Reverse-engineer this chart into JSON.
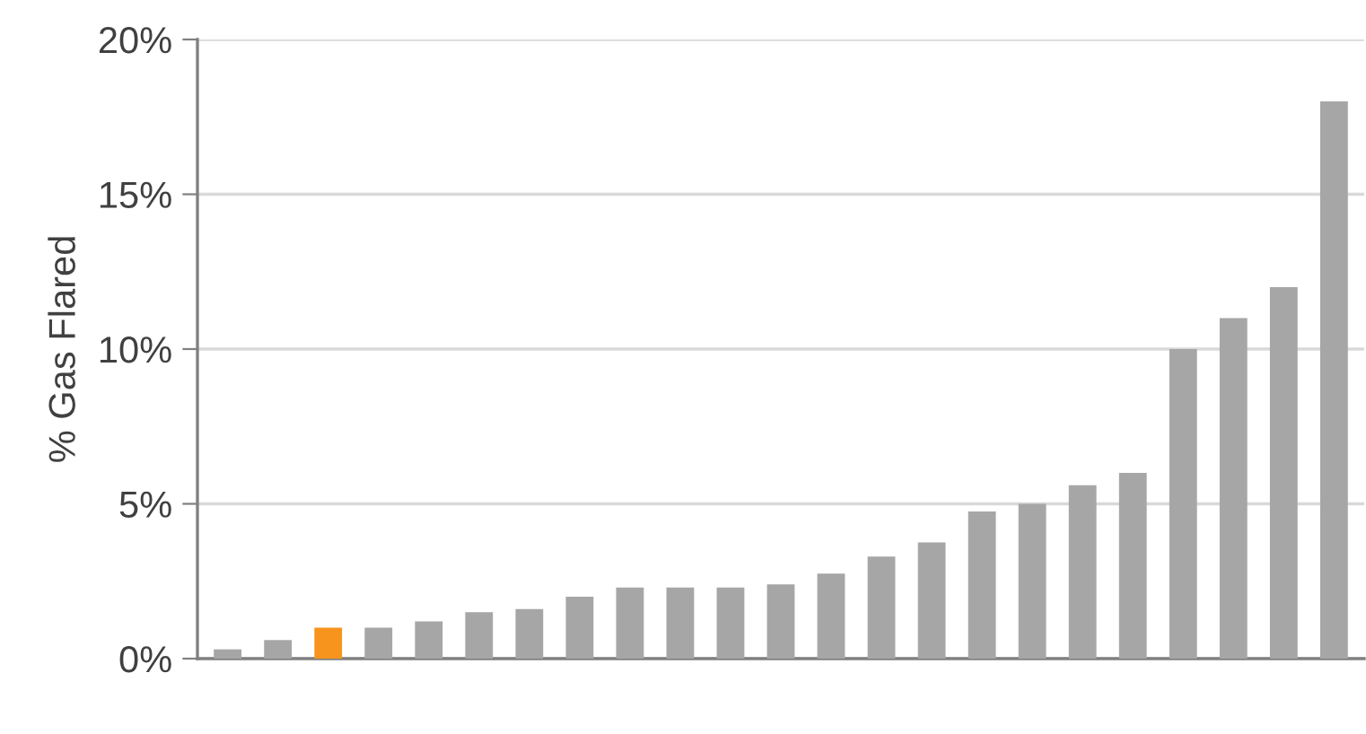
{
  "chart_data": {
    "type": "bar",
    "ylabel": "% Gas Flared",
    "categories": [
      null,
      null,
      null,
      null,
      null,
      null,
      null,
      null,
      null,
      null,
      null,
      null,
      null,
      null,
      null,
      null,
      null,
      null,
      null,
      null,
      null,
      null,
      null
    ],
    "values": [
      0.3,
      0.6,
      1.0,
      1.0,
      1.2,
      1.5,
      1.6,
      2.0,
      2.3,
      2.3,
      2.3,
      2.4,
      2.75,
      3.3,
      3.75,
      4.75,
      5.0,
      5.6,
      6.0,
      10.0,
      11.0,
      12.0,
      18.0
    ],
    "colors": [
      "#a6a6a6",
      "#a6a6a6",
      "#f7941d",
      "#a6a6a6",
      "#a6a6a6",
      "#a6a6a6",
      "#a6a6a6",
      "#a6a6a6",
      "#a6a6a6",
      "#a6a6a6",
      "#a6a6a6",
      "#a6a6a6",
      "#a6a6a6",
      "#a6a6a6",
      "#a6a6a6",
      "#a6a6a6",
      "#a6a6a6",
      "#a6a6a6",
      "#a6a6a6",
      "#a6a6a6",
      "#a6a6a6",
      "#a6a6a6",
      "#a6a6a6"
    ],
    "ylim": [
      0,
      20
    ],
    "yticks": [
      {
        "value": 0,
        "label": "0%"
      },
      {
        "value": 5,
        "label": "5%"
      },
      {
        "value": 10,
        "label": "10%"
      },
      {
        "value": 15,
        "label": "15%"
      },
      {
        "value": 20,
        "label": "20%"
      }
    ],
    "grid": "y",
    "legend": false
  }
}
